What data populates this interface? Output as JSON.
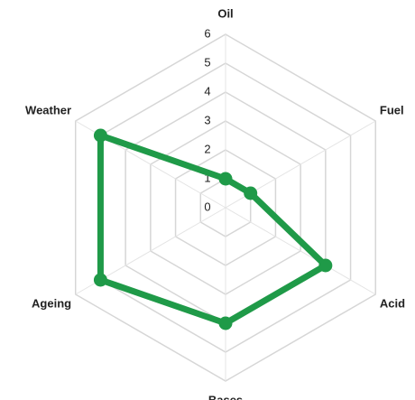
{
  "chart_data": {
    "type": "radar",
    "categories": [
      "Oil",
      "Fuel",
      "Acid",
      "Bases",
      "Ageing",
      "Weather"
    ],
    "series": [
      {
        "color": "#1f9a48",
        "values": [
          1,
          1,
          4,
          4,
          5,
          5
        ]
      }
    ],
    "ylim": [
      0,
      6
    ],
    "yticks": [
      0,
      1,
      2,
      3,
      4,
      5,
      6
    ],
    "grid": true
  }
}
